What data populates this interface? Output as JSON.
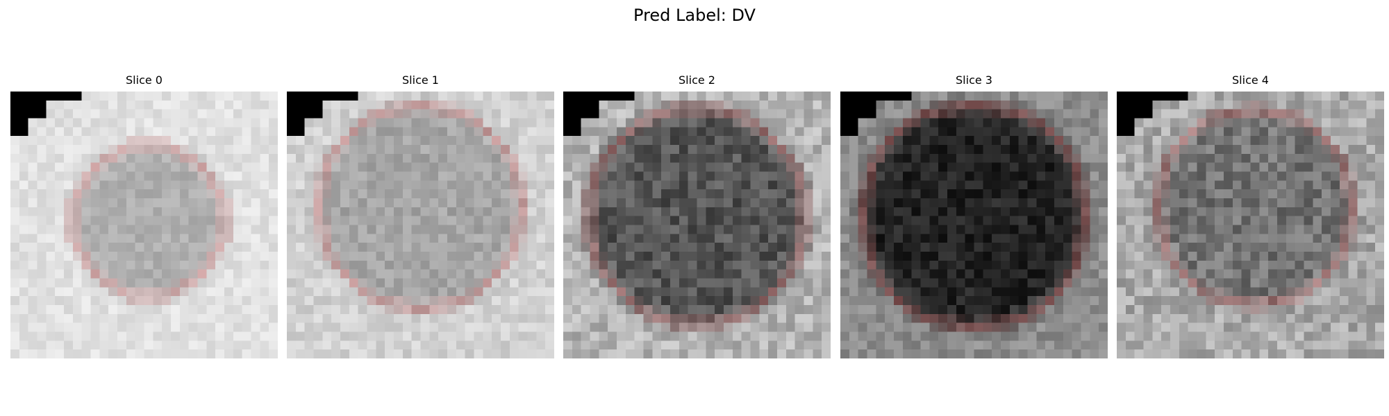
{
  "figure": {
    "title": "Pred Label: DV"
  },
  "panels": [
    {
      "title": "Slice 0",
      "background_gray": 225,
      "lesion_gray": 175,
      "noise": 14,
      "contour_color": "#e41a1c"
    },
    {
      "title": "Slice 1",
      "background_gray": 210,
      "lesion_gray": 165,
      "noise": 18,
      "contour_color": "#e41a1c"
    },
    {
      "title": "Slice 2",
      "background_gray": 180,
      "lesion_gray": 85,
      "noise": 30,
      "contour_color": "#e41a1c"
    },
    {
      "title": "Slice 3",
      "background_gray": 140,
      "lesion_gray": 35,
      "noise": 22,
      "contour_color": "#e41a1c"
    },
    {
      "title": "Slice 4",
      "background_gray": 170,
      "lesion_gray": 115,
      "noise": 32,
      "contour_color": "#e41a1c"
    }
  ],
  "colors": {
    "background": "#ffffff",
    "contour": "#e41a1c",
    "corner_mask": "#000000"
  }
}
